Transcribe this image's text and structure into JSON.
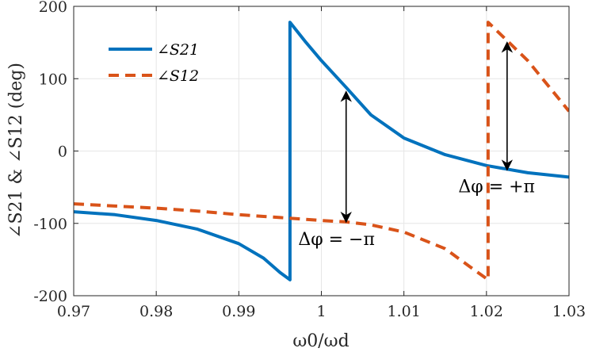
{
  "chart_data": {
    "type": "line",
    "xlabel": "ω0/ωd",
    "ylabel": "∠S21 & ∠S12 (deg)",
    "xlim": [
      0.97,
      1.03
    ],
    "ylim": [
      -200,
      200
    ],
    "xticks": [
      0.97,
      0.98,
      0.99,
      1.0,
      1.01,
      1.02,
      1.03
    ],
    "xtick_labels": [
      "0.97",
      "0.98",
      "0.99",
      "1",
      "1.01",
      "1.02",
      "1.03"
    ],
    "yticks": [
      -200,
      -100,
      0,
      100,
      200
    ],
    "ytick_labels": [
      "-200",
      "-100",
      "0",
      "100",
      "200"
    ],
    "grid": true,
    "legend_position": "top-left",
    "series": [
      {
        "name": "∠S21",
        "color": "#0072BD",
        "style": "solid",
        "x": [
          0.97,
          0.975,
          0.98,
          0.985,
          0.99,
          0.993,
          0.995,
          0.9962,
          0.9962,
          0.998,
          1.0,
          1.003,
          1.006,
          1.01,
          1.015,
          1.02,
          1.025,
          1.03
        ],
        "y": [
          -84,
          -88,
          -96,
          -108,
          -128,
          -148,
          -168,
          -178,
          178,
          152,
          125,
          88,
          50,
          18,
          -5,
          -20,
          -30,
          -36
        ]
      },
      {
        "name": "∠S12",
        "color": "#D95319",
        "style": "dashed",
        "x": [
          0.97,
          0.975,
          0.98,
          0.985,
          0.99,
          0.995,
          1.0,
          1.003,
          1.006,
          1.01,
          1.015,
          1.018,
          1.0202,
          1.0202,
          1.025,
          1.03
        ],
        "y": [
          -73,
          -76,
          -79,
          -83,
          -88,
          -92,
          -96,
          -98,
          -102,
          -112,
          -135,
          -160,
          -178,
          178,
          125,
          55
        ]
      }
    ],
    "annotations": [
      {
        "text": "Δφ = −π",
        "x1": 1.003,
        "y1": 82,
        "x2": 1.003,
        "y2": -98,
        "label_x": 0.9972,
        "label_y": -130
      },
      {
        "text": "Δφ = +π",
        "x1": 1.0225,
        "y1": 150,
        "x2": 1.0225,
        "y2": -26,
        "label_x": 1.0166,
        "label_y": -57
      }
    ]
  }
}
